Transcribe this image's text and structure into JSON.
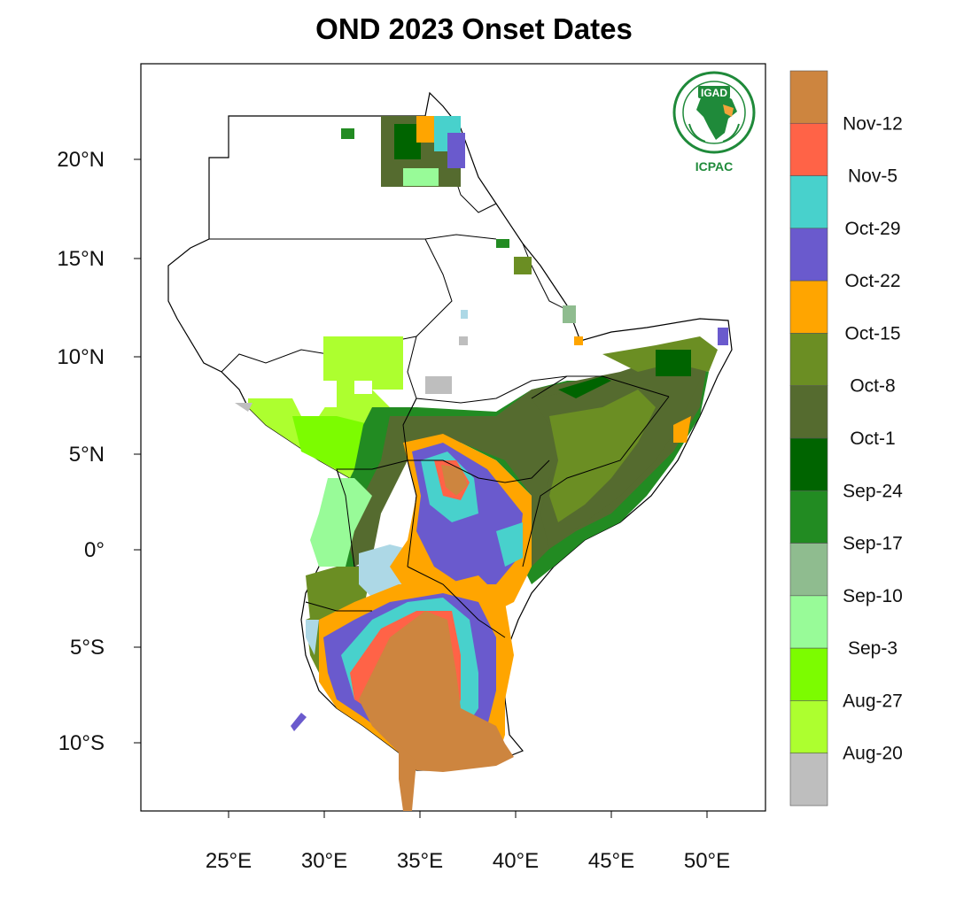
{
  "title": "OND 2023 Onset Dates",
  "logo": {
    "top_text": "IGAD",
    "bottom_text": "ICPAC",
    "color": "#1f8a3a",
    "accent": "#f2a33a"
  },
  "map": {
    "lon_ticks": [
      "25°E",
      "30°E",
      "35°E",
      "40°E",
      "45°E",
      "50°E"
    ],
    "lat_ticks": [
      "20°N",
      "15°N",
      "10°N",
      "5°N",
      "0°",
      "5°S",
      "10°S"
    ],
    "extent": {
      "lon_min": 20.5,
      "lon_max": 53.0,
      "lat_min": -13.5,
      "lat_max": 24.8
    }
  },
  "legend": {
    "colors": [
      "#cd853f",
      "#ff6347",
      "#48d1cc",
      "#6a5acd",
      "#ffa500",
      "#6b8e23",
      "#556b2f",
      "#006400",
      "#228b22",
      "#8fbc8f",
      "#98fb98",
      "#7cfc00",
      "#adff2f",
      "#bebebe"
    ],
    "labels": [
      "Nov-12",
      "Nov-5",
      "Oct-29",
      "Oct-22",
      "Oct-15",
      "Oct-8",
      "Oct-1",
      "Sep-24",
      "Sep-17",
      "Sep-10",
      "Sep-3",
      "Aug-27",
      "Aug-20"
    ]
  }
}
